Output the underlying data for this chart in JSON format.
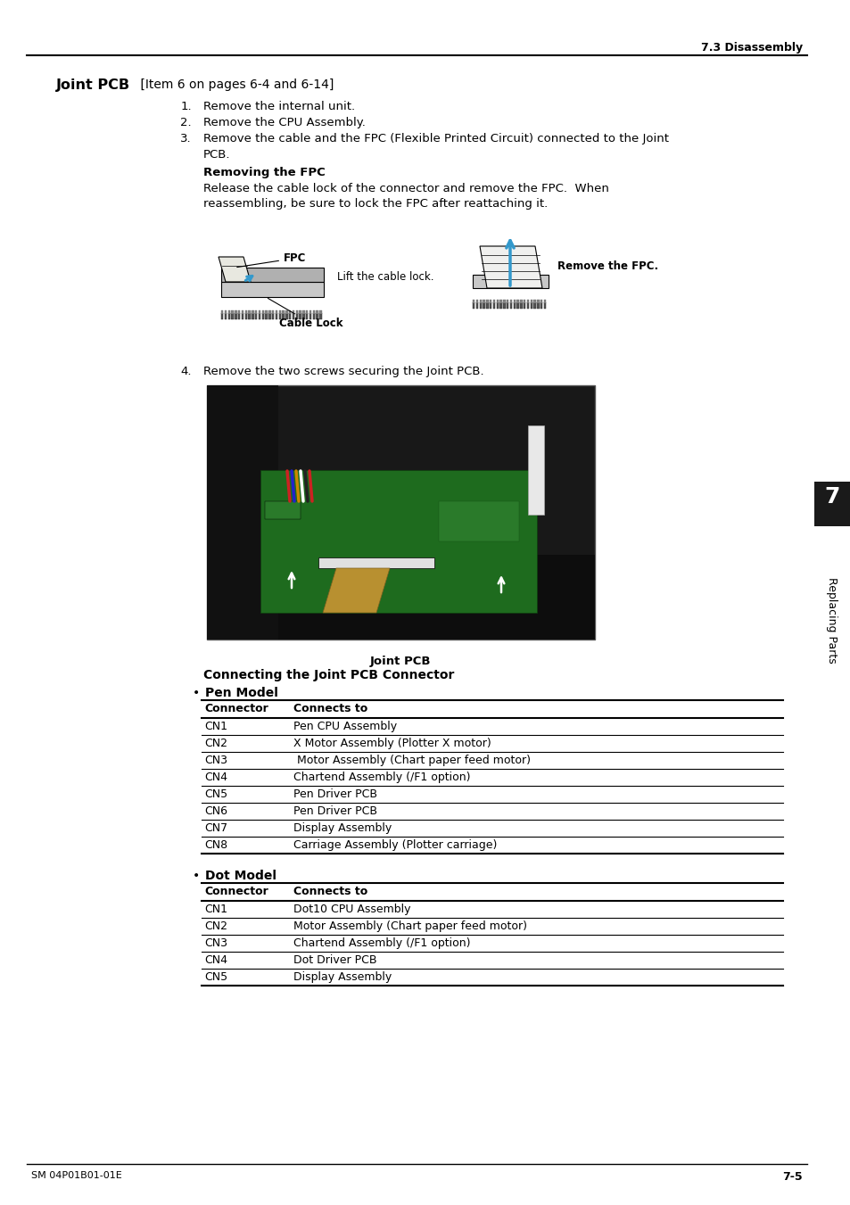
{
  "page_title": "7.3 Disassembly",
  "section_title_bold": "Joint PCB",
  "section_title_normal": " [Item 6 on pages 6-4 and 6-14]",
  "steps": [
    "Remove the internal unit.",
    "Remove the CPU Assembly.",
    "Remove the cable and the FPC (Flexible Printed Circuit) connected to the Joint"
  ],
  "step3_cont": "PCB.",
  "removing_fpc_title": "Removing the FPC",
  "removing_fpc_line1": "Release the cable lock of the connector and remove the FPC.  When",
  "removing_fpc_line2": "reassembling, be sure to lock the FPC after reattaching it.",
  "fpc_label": "FPC",
  "lift_label": "Lift the cable lock.",
  "cable_lock_label": "Cable Lock",
  "remove_fpc_label": "Remove the FPC.",
  "step4_text": "Remove the two screws securing the Joint PCB.",
  "joint_pcb_label": "Joint PCB",
  "connecting_title": "Connecting the Joint PCB Connector",
  "pen_model_title": "Pen Model",
  "pen_table_headers": [
    "Connector",
    "Connects to"
  ],
  "pen_table_rows": [
    [
      "CN1",
      "Pen CPU Assembly"
    ],
    [
      "CN2",
      "X Motor Assembly (Plotter X motor)"
    ],
    [
      "CN3",
      " Motor Assembly (Chart paper feed motor)"
    ],
    [
      "CN4",
      "Chartend Assembly (/F1 option)"
    ],
    [
      "CN5",
      "Pen Driver PCB"
    ],
    [
      "CN6",
      "Pen Driver PCB"
    ],
    [
      "CN7",
      "Display Assembly"
    ],
    [
      "CN8",
      "Carriage Assembly (Plotter carriage)"
    ]
  ],
  "dot_model_title": "Dot Model",
  "dot_table_headers": [
    "Connector",
    "Connects to"
  ],
  "dot_table_rows": [
    [
      "CN1",
      "Dot10 CPU Assembly"
    ],
    [
      "CN2",
      "Motor Assembly (Chart paper feed motor)"
    ],
    [
      "CN3",
      "Chartend Assembly (/F1 option)"
    ],
    [
      "CN4",
      "Dot Driver PCB"
    ],
    [
      "CN5",
      "Display Assembly"
    ]
  ],
  "footer_left": "SM 04P01B01-01E",
  "footer_right": "7-5",
  "sidebar_text": "Replacing Parts",
  "sidebar_number": "7",
  "bg_color": "#ffffff",
  "text_color": "#000000",
  "sidebar_bg": "#1a1a1a"
}
